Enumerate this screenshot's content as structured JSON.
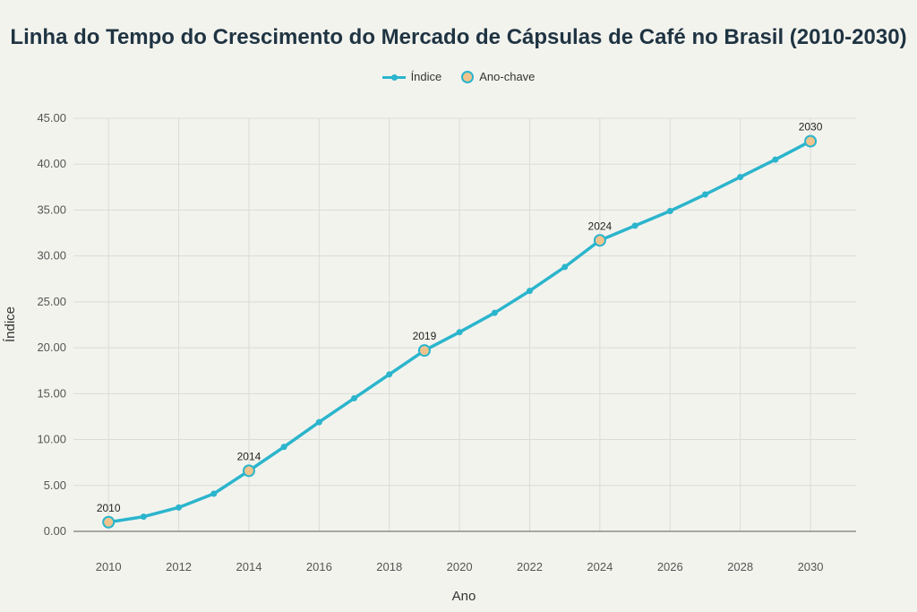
{
  "chart_data": {
    "type": "line",
    "title": "Linha do Tempo do Crescimento do Mercado de Cápsulas de Café no Brasil (2010-2030)",
    "xlabel": "Ano",
    "ylabel": "Índice",
    "xlim": [
      2009,
      2031.3
    ],
    "ylim": [
      0,
      45
    ],
    "x_ticks": [
      "2010",
      "2012",
      "2014",
      "2016",
      "2018",
      "2020",
      "2022",
      "2024",
      "2026",
      "2028",
      "2030"
    ],
    "y_ticks": [
      "0.00",
      "5.00",
      "10.00",
      "15.00",
      "20.00",
      "25.00",
      "30.00",
      "35.00",
      "40.00",
      "45.00"
    ],
    "grid": true,
    "legend_position": "top-center",
    "series": [
      {
        "name": "Índice",
        "color": "#2bb5cc",
        "x": [
          2010,
          2011,
          2012,
          2013,
          2014,
          2015,
          2016,
          2017,
          2018,
          2019,
          2020,
          2021,
          2022,
          2023,
          2024,
          2025,
          2026,
          2027,
          2028,
          2029,
          2030
        ],
        "values": [
          1.0,
          1.6,
          2.6,
          4.1,
          6.6,
          9.2,
          11.9,
          14.5,
          17.1,
          19.7,
          21.7,
          23.8,
          26.2,
          28.8,
          31.7,
          33.3,
          34.9,
          36.7,
          38.6,
          40.5,
          42.5
        ]
      },
      {
        "name": "Ano-chave",
        "color": "#f1c48e",
        "x": [
          2010,
          2014,
          2019,
          2024,
          2030
        ],
        "values": [
          1.0,
          6.6,
          19.7,
          31.7,
          42.5
        ],
        "labels": [
          "2010",
          "2014",
          "2019",
          "2024",
          "2030"
        ]
      }
    ]
  }
}
